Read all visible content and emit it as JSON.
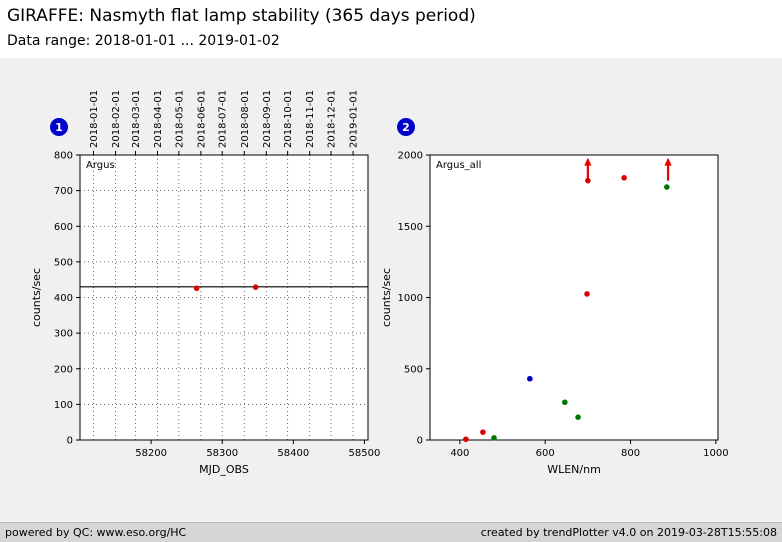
{
  "header": {
    "title": "GIRAFFE: Nasmyth flat lamp stability (365 days period)",
    "subtitle": "Data range: 2018-01-01 ... 2019-01-02"
  },
  "footer": {
    "left": "powered by QC: www.eso.org/HC",
    "right": "created by trendPlotter v4.0 on 2019-03-28T15:55:08"
  },
  "badges": [
    {
      "label": "1"
    },
    {
      "label": "2"
    }
  ],
  "colors": {
    "background": "#f0f0f0",
    "header_bg": "#ffffff",
    "footer_bg": "#d6d6d6",
    "badge": "#0000cc",
    "red": "#dd0000",
    "green": "#007700",
    "blue": "#0000bb",
    "arrow": "#ee0000",
    "grid": "#444444"
  },
  "chart_data": [
    {
      "type": "scatter",
      "series_label": "Argus",
      "xlabel": "MJD_OBS",
      "ylabel": "counts/sec",
      "xlim": [
        58100,
        58505
      ],
      "ylim": [
        0,
        800
      ],
      "xticks": [
        58200,
        58300,
        58400,
        58500
      ],
      "yticks": [
        0,
        100,
        200,
        300,
        400,
        500,
        600,
        700,
        800
      ],
      "grid": true,
      "reference_line": 430,
      "top_dates": [
        {
          "label": "2018-01-01",
          "mjd": 58119
        },
        {
          "label": "2018-02-01",
          "mjd": 58150
        },
        {
          "label": "2018-03-01",
          "mjd": 58178
        },
        {
          "label": "2018-04-01",
          "mjd": 58209
        },
        {
          "label": "2018-05-01",
          "mjd": 58239
        },
        {
          "label": "2018-06-01",
          "mjd": 58270
        },
        {
          "label": "2018-07-01",
          "mjd": 58300
        },
        {
          "label": "2018-08-01",
          "mjd": 58331
        },
        {
          "label": "2018-09-01",
          "mjd": 58362
        },
        {
          "label": "2018-10-01",
          "mjd": 58392
        },
        {
          "label": "2018-11-01",
          "mjd": 58423
        },
        {
          "label": "2018-12-01",
          "mjd": 58453
        },
        {
          "label": "2019-01-01",
          "mjd": 58484
        }
      ],
      "points": [
        {
          "x": 58264,
          "y": 426,
          "color": "red"
        },
        {
          "x": 58347,
          "y": 429,
          "color": "red"
        }
      ],
      "arrows": []
    },
    {
      "type": "scatter",
      "series_label": "Argus_all",
      "xlabel": "WLEN/nm",
      "ylabel": "counts/sec",
      "xlim": [
        330,
        1005
      ],
      "ylim": [
        0,
        2000
      ],
      "xticks": [
        400,
        600,
        800,
        1000
      ],
      "yticks": [
        0,
        500,
        1000,
        1500,
        2000
      ],
      "grid": false,
      "reference_line": null,
      "top_dates": [],
      "points": [
        {
          "x": 414,
          "y": 5,
          "color": "red"
        },
        {
          "x": 454,
          "y": 55,
          "color": "red"
        },
        {
          "x": 480,
          "y": 15,
          "color": "green"
        },
        {
          "x": 564,
          "y": 430,
          "color": "blue"
        },
        {
          "x": 646,
          "y": 265,
          "color": "green"
        },
        {
          "x": 677,
          "y": 160,
          "color": "green"
        },
        {
          "x": 698,
          "y": 1025,
          "color": "red"
        },
        {
          "x": 700,
          "y": 1820,
          "color": "red"
        },
        {
          "x": 785,
          "y": 1840,
          "color": "red"
        },
        {
          "x": 885,
          "y": 1775,
          "color": "green"
        }
      ],
      "arrows": [
        {
          "x": 700,
          "y_from": 1820,
          "y_to": 1975
        },
        {
          "x": 888,
          "y_from": 1820,
          "y_to": 1975
        }
      ]
    }
  ]
}
